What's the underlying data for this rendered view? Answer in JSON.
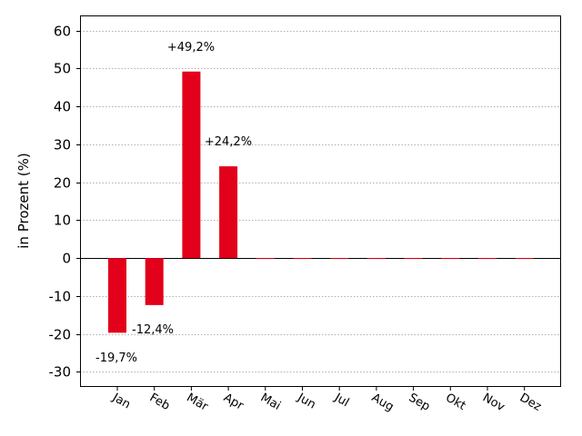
{
  "chart_data": {
    "type": "bar",
    "ylabel": "in Prozent (%)",
    "xlabel": "",
    "title": "",
    "ylim": [
      -34,
      64
    ],
    "yticks": [
      -30,
      -20,
      -10,
      0,
      10,
      20,
      30,
      40,
      50,
      60
    ],
    "ytick_labels": [
      "-30",
      "-20",
      "-10",
      "0",
      "10",
      "20",
      "30",
      "40",
      "50",
      "60"
    ],
    "categories": [
      "Jan",
      "Feb",
      "Mär",
      "Apr",
      "Mai",
      "Jun",
      "Jul",
      "Aug",
      "Sep",
      "Okt",
      "Nov",
      "Dez"
    ],
    "values": [
      -19.7,
      -12.4,
      49.2,
      24.2,
      0,
      0,
      0,
      0,
      0,
      0,
      0,
      0
    ],
    "data_labels": [
      "-19,7%",
      "-12,4%",
      "+49,2%",
      "+24,2%",
      "",
      "",
      "",
      "",
      "",
      "",
      "",
      ""
    ],
    "grid": true,
    "bar_color": "#e2001a",
    "grid_color": "#b0b0b0"
  }
}
